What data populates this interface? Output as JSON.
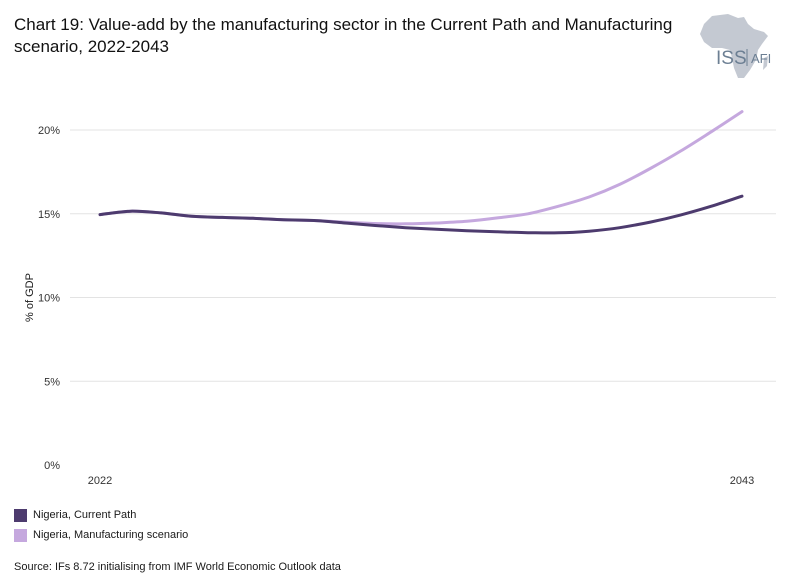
{
  "title": "Chart 19: Value-add by the manufacturing sector in the Current Path and Manufacturing scenario, 2022-2043",
  "logo": {
    "primary": "ISS",
    "secondary": "AFI",
    "icon": "africa-map-icon",
    "map_color": "#c4c9d2",
    "text_color": "#6c7f93"
  },
  "legend": [
    {
      "label": "Nigeria, Current Path",
      "color": "#4d3b6e"
    },
    {
      "label": "Nigeria, Manufacturing scenario",
      "color": "#c5a8de"
    }
  ],
  "source": "Source: IFs 8.72 initialising from IMF World Economic Outlook data",
  "chart_data": {
    "type": "line",
    "title": "Chart 19: Value-add by the manufacturing sector in the Current Path and Manufacturing scenario, 2022-2043",
    "ylabel": "% of GDP",
    "xlabel": "",
    "ylim": [
      0,
      20
    ],
    "yticks": [
      0,
      5,
      10,
      15,
      20
    ],
    "ytick_labels": [
      "0%",
      "5%",
      "10%",
      "15%",
      "20%"
    ],
    "xlim": [
      2022,
      2043
    ],
    "xtick_labels": [
      "2022",
      "2043"
    ],
    "grid": true,
    "legend_position": "bottom-left",
    "x": [
      2022,
      2023,
      2024,
      2025,
      2026,
      2027,
      2028,
      2029,
      2030,
      2031,
      2032,
      2033,
      2034,
      2035,
      2036,
      2037,
      2038,
      2039,
      2040,
      2041,
      2042,
      2043
    ],
    "series": [
      {
        "name": "Nigeria, Current Path",
        "color": "#4d3b6e",
        "values": [
          14.95,
          15.15,
          15.05,
          14.85,
          14.78,
          14.73,
          14.64,
          14.6,
          14.45,
          14.3,
          14.17,
          14.07,
          13.99,
          13.92,
          13.87,
          13.86,
          13.96,
          14.17,
          14.5,
          14.93,
          15.45,
          16.05
        ]
      },
      {
        "name": "Nigeria, Manufacturing scenario",
        "color": "#c5a8de",
        "values": [
          14.95,
          15.15,
          15.05,
          14.85,
          14.78,
          14.73,
          14.64,
          14.6,
          14.5,
          14.42,
          14.4,
          14.45,
          14.55,
          14.75,
          15.0,
          15.45,
          16.0,
          16.75,
          17.7,
          18.75,
          19.9,
          21.1
        ]
      }
    ]
  }
}
